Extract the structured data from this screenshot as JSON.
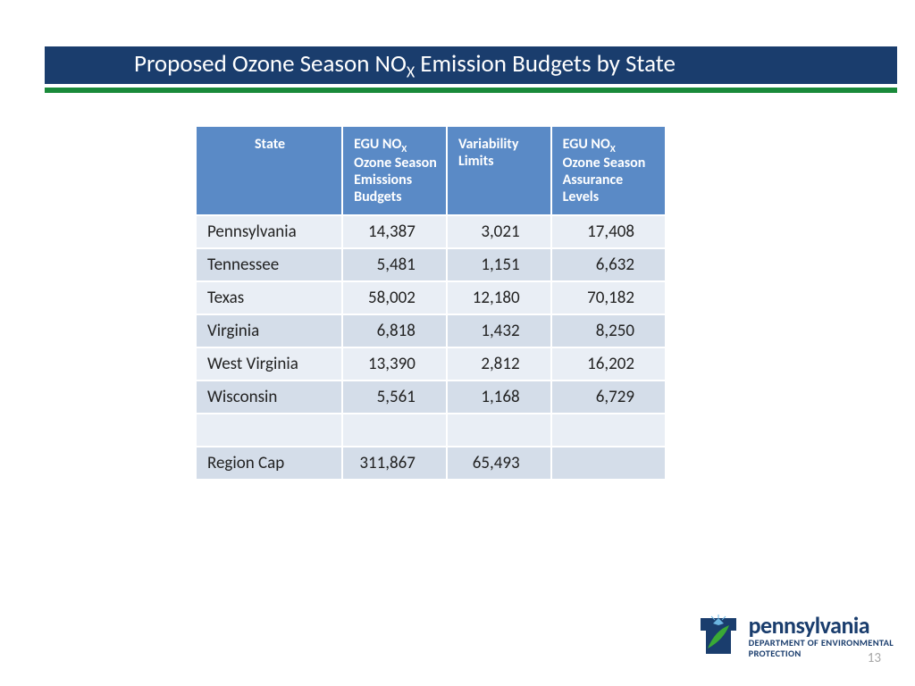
{
  "title": {
    "pre": "Proposed Ozone Season NO",
    "sub": "X",
    "post": " Emission Budgets by State"
  },
  "table": {
    "header_bg": "#5a8ac6",
    "row_odd_bg": "#e9eef5",
    "row_even_bg": "#d4dde9",
    "text_color": "#222222",
    "columns": [
      {
        "label": "State",
        "sub": ""
      },
      {
        "label_pre": "EGU NO",
        "label_sub": "X",
        "label_post": " Ozone Season Emissions Budgets"
      },
      {
        "label": "Variability Limits"
      },
      {
        "label_pre": "EGU NO",
        "label_sub": "X",
        "label_post": " Ozone Season Assurance Levels"
      }
    ],
    "th_padding": "10px 10px 10px 12px",
    "td_padding": "6px 10px 6px 12px",
    "rows": [
      {
        "state": "Pennsylvania",
        "budget": "14,387",
        "var": "3,021",
        "assure": "17,408"
      },
      {
        "state": "Tennessee",
        "budget": "5,481",
        "var": "1,151",
        "assure": "6,632"
      },
      {
        "state": "Texas",
        "budget": "58,002",
        "var": "12,180",
        "assure": "70,182"
      },
      {
        "state": "Virginia",
        "budget": "6,818",
        "var": "1,432",
        "assure": "8,250"
      },
      {
        "state": "West Virginia",
        "budget": "13,390",
        "var": "2,812",
        "assure": "16,202"
      },
      {
        "state": "Wisconsin",
        "budget": "5,561",
        "var": "1,168",
        "assure": "6,729"
      },
      {
        "state": "",
        "budget": "",
        "var": "",
        "assure": ""
      },
      {
        "state": "Region Cap",
        "budget": "311,867",
        "var": "65,493",
        "assure": ""
      }
    ]
  },
  "logo": {
    "main": "pennsylvania",
    "sub1": "DEPARTMENT OF ENVIRONMENTAL",
    "sub2": "PROTECTION",
    "shield_bg": "#1a3d6d",
    "leaf_color": "#3aa935",
    "sun_color": "#6bb4e0"
  },
  "page_number": "13",
  "colors": {
    "title_bar": "#1a3d6d",
    "green_bar": "#1a8a3a",
    "page_bg": "#ffffff"
  }
}
